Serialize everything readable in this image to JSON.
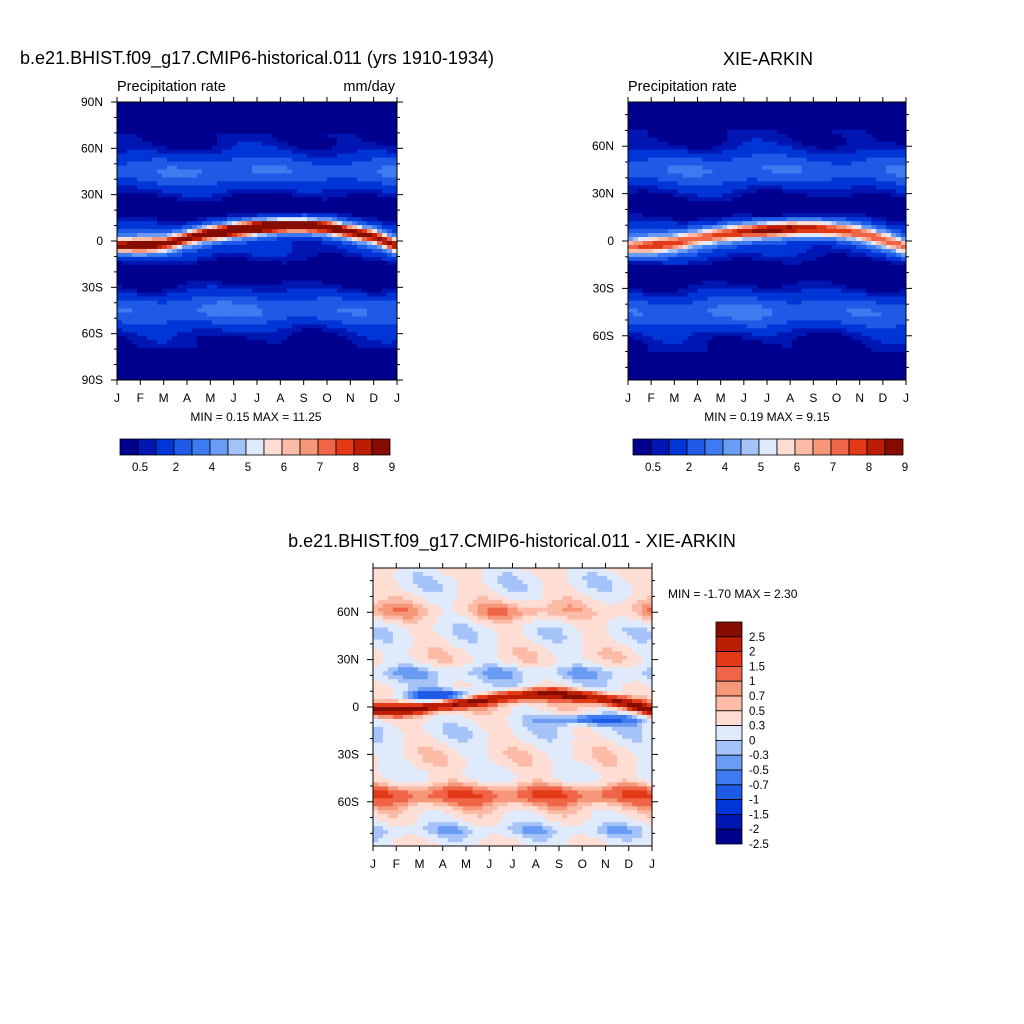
{
  "figure": {
    "panel_a": {
      "title": "b.e21.BHIST.f09_g17.CMIP6-historical.011 (yrs 1910-1934)",
      "left_string": "Precipitation rate",
      "right_string": "mm/day",
      "stats": "MIN =   0.15 MAX =  11.25"
    },
    "panel_b": {
      "title": "XIE-ARKIN",
      "left_string": "Precipitation rate",
      "right_string": "",
      "stats": "MIN =   0.19 MAX =   9.15"
    },
    "panel_c": {
      "title": "b.e21.BHIST.f09_g17.CMIP6-historical.011 - XIE-ARKIN",
      "stats": "MIN =  -1.70 MAX =   2.30"
    },
    "month_labels": [
      "J",
      "F",
      "M",
      "A",
      "M",
      "J",
      "J",
      "A",
      "S",
      "O",
      "N",
      "D",
      "J"
    ],
    "lat_labels_a": [
      "90N",
      "60N",
      "30N",
      "0",
      "30S",
      "60S",
      "90S"
    ],
    "lat_labels_bc": [
      "60N",
      "30N",
      "0",
      "30S",
      "60S"
    ],
    "colorbar_top": {
      "colors": [
        "#00008e",
        "#0016b3",
        "#0035d7",
        "#1f5ae6",
        "#3e7af0",
        "#6b9cf5",
        "#a5c3f8",
        "#dfebfc",
        "#feded4",
        "#fbbba6",
        "#f7977a",
        "#f06448",
        "#e23a17",
        "#bc1e05",
        "#860c00"
      ],
      "labels": [
        "0.5",
        "2",
        "4",
        "5",
        "6",
        "7",
        "8",
        "9"
      ]
    },
    "colorbar_diff": {
      "colors": [
        "#860c00",
        "#bc1e05",
        "#e23a17",
        "#f06448",
        "#f7977a",
        "#fbbba6",
        "#feded4",
        "#dfebfc",
        "#a5c3f8",
        "#6b9cf5",
        "#3e7af0",
        "#1f5ae6",
        "#0035d7",
        "#0016b3",
        "#00008e"
      ],
      "labels": [
        "2.5",
        "2",
        "1.5",
        "1",
        "0.7",
        "0.5",
        "0.3",
        "0",
        "-0.3",
        "-0.5",
        "-0.7",
        "-1",
        "-1.5",
        "-2",
        "-2.5"
      ]
    }
  },
  "chart_data": [
    {
      "type": "heatmap",
      "title": "b.e21.BHIST.f09_g17.CMIP6-historical.011 (yrs 1910-1934)",
      "variable": "Precipitation rate",
      "units": "mm/day",
      "x": [
        "J",
        "F",
        "M",
        "A",
        "M",
        "J",
        "J",
        "A",
        "S",
        "O",
        "N",
        "D",
        "J"
      ],
      "y": [
        -90,
        -60,
        -30,
        0,
        30,
        60,
        90
      ],
      "levels": [
        0.5,
        1,
        2,
        3,
        4,
        5,
        5.5,
        6,
        6.5,
        7,
        7.5,
        8,
        8.5,
        9
      ],
      "min": 0.15,
      "max": 11.25,
      "features": {
        "itcz_lat_by_month": [
          -3,
          -3,
          -2,
          2,
          5,
          7,
          9,
          10,
          10,
          9,
          6,
          3,
          -3
        ],
        "itcz_peak_by_month": [
          7,
          7,
          6.5,
          7.5,
          9,
          10,
          10.5,
          11,
          10.5,
          9.5,
          8,
          7.5,
          7
        ]
      }
    },
    {
      "type": "heatmap",
      "title": "XIE-ARKIN",
      "variable": "Precipitation rate",
      "x": [
        "J",
        "F",
        "M",
        "A",
        "M",
        "J",
        "J",
        "A",
        "S",
        "O",
        "N",
        "D",
        "J"
      ],
      "y": [
        -60,
        -30,
        0,
        30,
        60
      ],
      "levels": [
        0.5,
        1,
        2,
        3,
        4,
        5,
        5.5,
        6,
        6.5,
        7,
        7.5,
        8,
        8.5,
        9
      ],
      "min": 0.19,
      "max": 9.15,
      "features": {
        "itcz_lat_by_month": [
          -4,
          -3,
          -1,
          2,
          4,
          6,
          7,
          8,
          8,
          7,
          5,
          1,
          -4
        ],
        "itcz_peak_by_month": [
          5.5,
          5.5,
          5.5,
          6,
          7,
          7.5,
          8.5,
          9,
          8.5,
          7.5,
          6.5,
          6,
          5.5
        ]
      }
    },
    {
      "type": "heatmap",
      "title": "b.e21.BHIST.f09_g17.CMIP6-historical.011 - XIE-ARKIN",
      "x": [
        "J",
        "F",
        "M",
        "A",
        "M",
        "J",
        "J",
        "A",
        "S",
        "O",
        "N",
        "D",
        "J"
      ],
      "y": [
        -60,
        -30,
        0,
        30,
        60
      ],
      "levels": [
        -2.5,
        -2,
        -1.5,
        -1,
        -0.7,
        -0.5,
        -0.3,
        0,
        0.3,
        0.5,
        0.7,
        1,
        1.5,
        2,
        2.5
      ],
      "min": -1.7,
      "max": 2.3
    }
  ]
}
